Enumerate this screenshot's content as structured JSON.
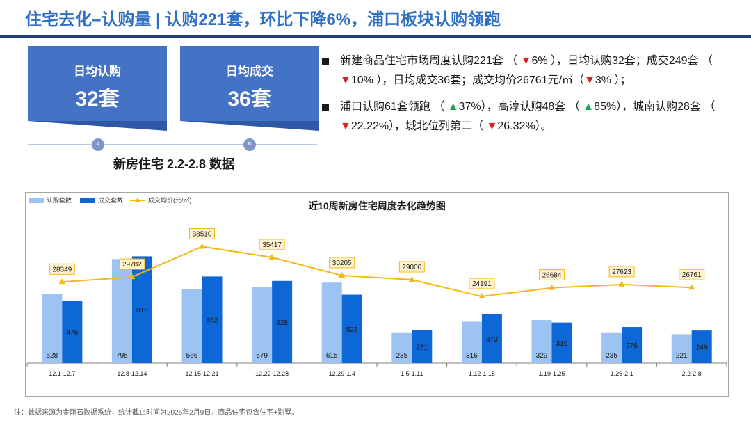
{
  "header": {
    "title": "住宅去化–认购量 | 认购221套，环比下降6%，浦口板块认购领跑"
  },
  "kpis": [
    {
      "label": "日均认购",
      "value": "32套"
    },
    {
      "label": "日均成交",
      "value": "36套"
    }
  ],
  "timeline": {
    "markers": [
      "A",
      "B"
    ]
  },
  "subtitle": "新房住宅 2.2-2.8 数据",
  "bullets": {
    "b1": [
      {
        "t": "新建商品住宅市场周度认购221套 （ "
      },
      {
        "t": "▼",
        "c": "down"
      },
      {
        "t": "6% ），日均认购32套；成交249套 （ "
      },
      {
        "t": "▼",
        "c": "down"
      },
      {
        "t": "10% ），日均成交36套；成交均价26761元/㎡（"
      },
      {
        "t": "▼",
        "c": "down"
      },
      {
        "t": "3% ）；"
      }
    ],
    "b2": [
      {
        "t": "浦口认购61套领跑 （ "
      },
      {
        "t": "▲",
        "c": "up"
      },
      {
        "t": "37%），高淳认购48套 （ "
      },
      {
        "t": "▲",
        "c": "up"
      },
      {
        "t": "85%），城南认购28套 （ "
      },
      {
        "t": "▼",
        "c": "down"
      },
      {
        "t": "22.22%），城北位列第二（ "
      },
      {
        "t": "▼",
        "c": "down"
      },
      {
        "t": "26.32%）。"
      }
    ]
  },
  "colors": {
    "up": "#1aa34a",
    "down": "#e02020",
    "subscription_bar": "#9dc3f2",
    "deal_bar": "#0e67d6",
    "price_line": "#f2b912"
  },
  "chart_data": {
    "type": "bar",
    "title": "近10周新房住宅周度去化趋势图",
    "categories": [
      "12.1-12.7",
      "12.8-12.14",
      "12.15-12.21",
      "12.22-12.28",
      "12.29-1.4",
      "1.5-1.11",
      "1.12-1.18",
      "1.19-1.25",
      "1.26-2.1",
      "2.2-2.8"
    ],
    "series": [
      {
        "name": "认购套数",
        "type": "bar",
        "values": [
          528,
          795,
          566,
          579,
          615,
          235,
          316,
          329,
          235,
          221
        ]
      },
      {
        "name": "成交套数",
        "type": "bar",
        "values": [
          476,
          816,
          662,
          628,
          523,
          251,
          373,
          310,
          276,
          249
        ]
      },
      {
        "name": "成交均价(元/㎡)",
        "type": "line",
        "values": [
          28349,
          29782,
          38510,
          35417,
          30205,
          29000,
          24191,
          26684,
          27623,
          26761
        ]
      }
    ],
    "legend_position": "top-left",
    "grid": false
  },
  "footnote": "注：数据来源为金刚石数据系统，统计截止时间为2026年2月9日，商品住宅包含住宅+别墅。"
}
